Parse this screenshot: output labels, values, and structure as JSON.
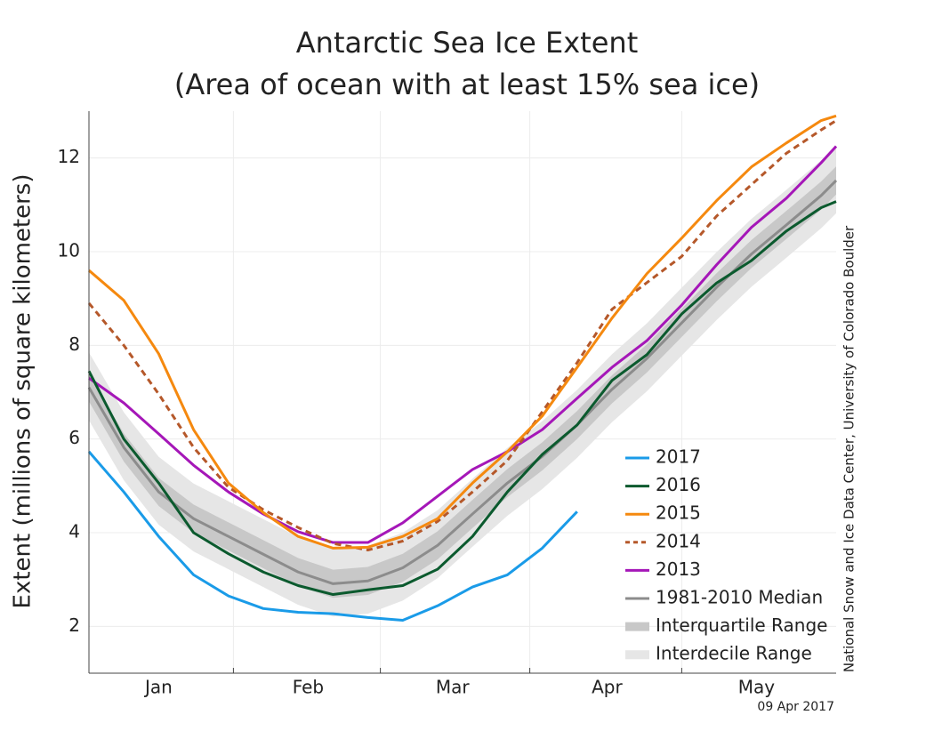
{
  "chart_data": {
    "type": "line",
    "title": "Antarctic Sea Ice Extent",
    "subtitle": "(Area of ocean with at least 15% sea ice)",
    "y_label": "Extent (millions of square kilometers)",
    "source": "National Snow and Ice Data Center, University of Colorado Boulder",
    "date": "09 Apr 2017",
    "x": [
      1,
      8,
      15,
      22,
      29,
      36,
      43,
      50,
      57,
      64,
      71,
      78,
      85,
      92,
      99,
      106,
      113,
      120,
      127,
      134,
      141,
      148,
      151
    ],
    "xlim": [
      1,
      151
    ],
    "xticks": [
      {
        "value": 15,
        "label": "Jan"
      },
      {
        "value": 45,
        "label": "Feb"
      },
      {
        "value": 74,
        "label": "Mar"
      },
      {
        "value": 105,
        "label": "Apr"
      },
      {
        "value": 135,
        "label": "May"
      }
    ],
    "ylim": [
      1,
      13
    ],
    "yticks": [
      2,
      4,
      6,
      8,
      10,
      12
    ],
    "grid": true,
    "legend": "lower-right",
    "series": [
      {
        "name": "2017",
        "color": "#1a9be8",
        "values": [
          5.73,
          4.87,
          3.92,
          3.1,
          2.65,
          2.38,
          2.3,
          2.27,
          2.19,
          2.13,
          2.44,
          2.84,
          3.1,
          3.67,
          4.45,
          null,
          null,
          null,
          null,
          null,
          null,
          null,
          null
        ]
      },
      {
        "name": "2016",
        "color": "#0b5a2e",
        "values": [
          7.45,
          6.0,
          5.06,
          4.0,
          3.55,
          3.16,
          2.87,
          2.68,
          2.78,
          2.87,
          3.22,
          3.92,
          4.87,
          5.67,
          6.3,
          7.25,
          7.8,
          8.67,
          9.33,
          9.81,
          10.44,
          10.94,
          11.07
        ]
      },
      {
        "name": "2015",
        "color": "#f5890f",
        "values": [
          9.6,
          8.96,
          7.82,
          6.2,
          5.06,
          4.43,
          3.92,
          3.67,
          3.69,
          3.92,
          4.3,
          5.06,
          5.73,
          6.49,
          7.53,
          8.58,
          9.53,
          10.29,
          11.09,
          11.81,
          12.32,
          12.8,
          12.9
        ]
      },
      {
        "name": "2014",
        "color": "#b5582a",
        "dash": true,
        "values": [
          8.9,
          8.0,
          6.96,
          5.82,
          4.97,
          4.49,
          4.11,
          3.77,
          3.63,
          3.82,
          4.24,
          4.87,
          5.54,
          6.58,
          7.63,
          8.77,
          9.34,
          9.9,
          10.76,
          11.43,
          12.1,
          12.6,
          12.8
        ]
      },
      {
        "name": "2013",
        "color": "#a517b8",
        "values": [
          7.3,
          6.77,
          6.11,
          5.44,
          4.87,
          4.4,
          4.02,
          3.79,
          3.79,
          4.21,
          4.78,
          5.35,
          5.73,
          6.2,
          6.87,
          7.53,
          8.1,
          8.86,
          9.72,
          10.52,
          11.14,
          11.9,
          12.25
        ]
      },
      {
        "name": "1981-2010 Median",
        "color": "#8c8c8c",
        "values": [
          7.1,
          5.82,
          4.87,
          4.3,
          3.92,
          3.54,
          3.16,
          2.91,
          2.97,
          3.25,
          3.73,
          4.4,
          5.06,
          5.63,
          6.3,
          7.06,
          7.72,
          8.48,
          9.24,
          9.95,
          10.57,
          11.2,
          11.52
        ]
      },
      {
        "name": "Interquartile Range",
        "color": "#c8c8c8",
        "lower": [
          6.8,
          5.52,
          4.57,
          4.0,
          3.62,
          3.24,
          2.86,
          2.61,
          2.67,
          2.95,
          3.43,
          4.1,
          4.76,
          5.33,
          6.0,
          6.76,
          7.42,
          8.18,
          8.94,
          9.65,
          10.27,
          10.9,
          11.22
        ],
        "upper": [
          7.4,
          6.12,
          5.17,
          4.6,
          4.22,
          3.84,
          3.46,
          3.21,
          3.27,
          3.55,
          4.03,
          4.7,
          5.36,
          5.93,
          6.6,
          7.36,
          8.02,
          8.78,
          9.54,
          10.25,
          10.87,
          11.5,
          11.82
        ]
      },
      {
        "name": "Interdecile Range",
        "color": "#e6e6e6",
        "lower": [
          6.4,
          5.12,
          4.17,
          3.6,
          3.22,
          2.84,
          2.46,
          2.21,
          2.27,
          2.55,
          3.03,
          3.7,
          4.36,
          4.93,
          5.6,
          6.36,
          7.02,
          7.78,
          8.54,
          9.25,
          9.87,
          10.5,
          10.82
        ],
        "upper": [
          7.85,
          6.57,
          5.62,
          5.05,
          4.67,
          4.29,
          3.91,
          3.66,
          3.72,
          4.0,
          4.48,
          5.15,
          5.81,
          6.38,
          7.05,
          7.81,
          8.47,
          9.23,
          9.99,
          10.7,
          11.32,
          11.95,
          12.27
        ]
      }
    ]
  }
}
